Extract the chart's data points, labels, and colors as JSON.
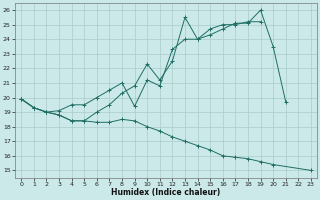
{
  "xlabel": "Humidex (Indice chaleur)",
  "xlim": [
    -0.5,
    23.5
  ],
  "ylim": [
    14.5,
    26.5
  ],
  "yticks": [
    15,
    16,
    17,
    18,
    19,
    20,
    21,
    22,
    23,
    24,
    25,
    26
  ],
  "xticks": [
    0,
    1,
    2,
    3,
    4,
    5,
    6,
    7,
    8,
    9,
    10,
    11,
    12,
    13,
    14,
    15,
    16,
    17,
    18,
    19,
    20,
    21,
    22,
    23
  ],
  "bg_color": "#cce9e9",
  "line_color": "#1e6e64",
  "grid_color": "#aacccc",
  "line1": {
    "x": [
      0,
      1,
      2,
      3,
      4,
      5,
      6,
      7,
      8,
      9,
      10,
      11,
      12,
      13,
      14,
      15,
      16,
      17,
      18,
      19,
      20,
      21
    ],
    "y": [
      19.9,
      19.3,
      19.0,
      18.8,
      18.4,
      18.4,
      19.0,
      19.5,
      20.3,
      20.8,
      22.3,
      21.2,
      22.5,
      25.5,
      24.0,
      24.3,
      24.7,
      25.1,
      25.1,
      26.0,
      23.5,
      19.7
    ]
  },
  "line2": {
    "x": [
      0,
      1,
      2,
      3,
      4,
      5,
      6,
      7,
      8,
      9,
      10,
      11,
      12,
      13,
      14,
      15,
      16,
      17,
      18,
      19
    ],
    "y": [
      19.9,
      19.3,
      19.0,
      19.1,
      19.5,
      19.5,
      20.0,
      20.5,
      21.0,
      19.4,
      21.2,
      20.8,
      23.3,
      24.0,
      24.0,
      24.7,
      25.0,
      25.0,
      25.2,
      25.2
    ]
  },
  "line3": {
    "x": [
      0,
      1,
      2,
      3,
      4,
      5,
      6,
      7,
      8,
      9,
      10,
      11,
      12,
      13,
      14,
      15,
      16,
      17,
      18,
      19,
      20,
      23
    ],
    "y": [
      19.9,
      19.3,
      19.0,
      18.8,
      18.4,
      18.4,
      18.3,
      18.3,
      18.5,
      18.4,
      18.0,
      17.7,
      17.3,
      17.0,
      16.7,
      16.4,
      16.0,
      15.9,
      15.8,
      15.6,
      15.4,
      15.0
    ]
  }
}
